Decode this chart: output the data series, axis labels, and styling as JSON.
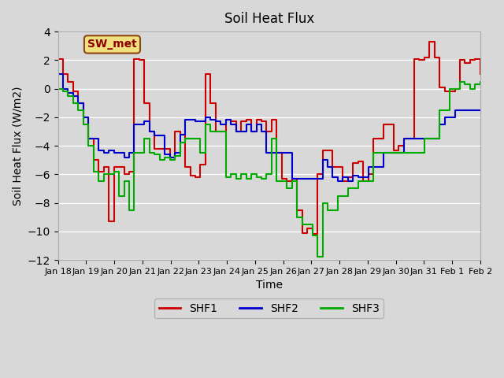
{
  "title": "Soil Heat Flux",
  "xlabel": "Time",
  "ylabel": "Soil Heat Flux (W/m2)",
  "ylim": [
    -12,
    4
  ],
  "yticks": [
    -12,
    -10,
    -8,
    -6,
    -4,
    -2,
    0,
    2,
    4
  ],
  "annotation": "SW_met",
  "bg_color": "#e8e8e8",
  "plot_bg": "#d8d8d8",
  "series": {
    "SHF1": {
      "color": "#cc0000",
      "values": [
        2.1,
        1.0,
        0.5,
        -0.2,
        -1.0,
        -2.0,
        -3.5,
        -5.0,
        -5.8,
        -5.5,
        -9.3,
        -5.5,
        -5.5,
        -6.0,
        -5.8,
        2.1,
        2.0,
        -1.0,
        -3.0,
        -4.2,
        -4.2,
        -4.2,
        -4.8,
        -3.0,
        -3.2,
        -5.5,
        -6.1,
        -6.2,
        -5.3,
        1.0,
        -1.0,
        -3.0,
        -3.0,
        -2.2,
        -2.3,
        -3.0,
        -2.3,
        -2.2,
        -3.0,
        -2.2,
        -2.3,
        -3.0,
        -2.2,
        -4.5,
        -6.3,
        -6.5,
        -6.3,
        -8.5,
        -10.1,
        -9.8,
        -10.2,
        -6.0,
        -4.3,
        -4.3,
        -5.5,
        -5.5,
        -6.5,
        -6.2,
        -5.2,
        -5.1,
        -6.5,
        -6.0,
        -3.5,
        -3.5,
        -2.5,
        -2.5,
        -4.3,
        -4.0,
        -3.5,
        -3.5,
        2.1,
        2.0,
        2.2,
        3.3,
        2.2,
        0.1,
        -0.2,
        -0.2,
        0.0,
        2.0,
        1.8,
        2.0,
        2.1,
        1.0
      ]
    },
    "SHF2": {
      "color": "#0000cc",
      "values": [
        1.0,
        0.0,
        -0.3,
        -0.5,
        -1.0,
        -2.0,
        -3.5,
        -3.5,
        -4.3,
        -4.5,
        -4.3,
        -4.5,
        -4.5,
        -4.8,
        -4.5,
        -2.5,
        -2.5,
        -2.3,
        -3.0,
        -3.3,
        -3.3,
        -4.6,
        -4.8,
        -4.5,
        -3.2,
        -2.2,
        -2.2,
        -2.3,
        -2.3,
        -2.0,
        -2.2,
        -2.3,
        -2.5,
        -2.2,
        -2.5,
        -3.0,
        -3.0,
        -2.5,
        -3.0,
        -2.5,
        -3.0,
        -4.5,
        -4.5,
        -4.5,
        -4.5,
        -4.5,
        -6.3,
        -6.3,
        -6.3,
        -6.3,
        -6.3,
        -6.3,
        -5.0,
        -5.5,
        -6.2,
        -6.5,
        -6.2,
        -6.5,
        -6.1,
        -6.2,
        -6.2,
        -5.5,
        -5.5,
        -5.5,
        -4.5,
        -4.5,
        -4.5,
        -4.5,
        -3.5,
        -3.5,
        -3.5,
        -3.5,
        -3.5,
        -3.5,
        -3.5,
        -2.5,
        -2.0,
        -2.0,
        -1.5,
        -1.5,
        -1.5,
        -1.5,
        -1.5,
        -1.5
      ]
    },
    "SHF3": {
      "color": "#00aa00",
      "values": [
        0.0,
        -0.2,
        -0.5,
        -1.0,
        -1.5,
        -2.5,
        -4.0,
        -5.8,
        -6.5,
        -6.0,
        -6.0,
        -5.8,
        -7.5,
        -6.5,
        -8.5,
        -4.5,
        -4.5,
        -3.5,
        -4.5,
        -4.6,
        -5.0,
        -4.8,
        -5.0,
        -4.7,
        -3.8,
        -3.5,
        -3.5,
        -3.5,
        -4.5,
        -2.5,
        -3.0,
        -3.0,
        -3.0,
        -6.2,
        -6.0,
        -6.3,
        -6.0,
        -6.3,
        -6.0,
        -6.2,
        -6.3,
        -6.0,
        -3.5,
        -6.5,
        -6.5,
        -7.0,
        -6.5,
        -9.0,
        -9.5,
        -9.5,
        -10.3,
        -11.8,
        -8.0,
        -8.5,
        -8.5,
        -7.5,
        -7.5,
        -7.0,
        -7.0,
        -6.5,
        -6.5,
        -6.5,
        -4.5,
        -4.5,
        -4.5,
        -4.5,
        -4.5,
        -4.5,
        -4.5,
        -4.5,
        -4.5,
        -4.5,
        -3.5,
        -3.5,
        -3.5,
        -1.5,
        -1.5,
        0.0,
        0.0,
        0.5,
        0.3,
        0.0,
        0.3,
        0.5
      ]
    }
  },
  "xtick_labels": [
    "Jan 18",
    "Jan 19",
    "Jan 20",
    "Jan 21",
    "Jan 22",
    "Jan 23",
    "Jan 24",
    "Jan 25",
    "Jan 26",
    "Jan 27",
    "Jan 28",
    "Jan 29",
    "Jan 30",
    "Jan 31",
    "Feb 1",
    "Feb 2"
  ],
  "legend_entries": [
    "SHF1",
    "SHF2",
    "SHF3"
  ],
  "legend_colors": [
    "#cc0000",
    "#0000cc",
    "#00aa00"
  ]
}
